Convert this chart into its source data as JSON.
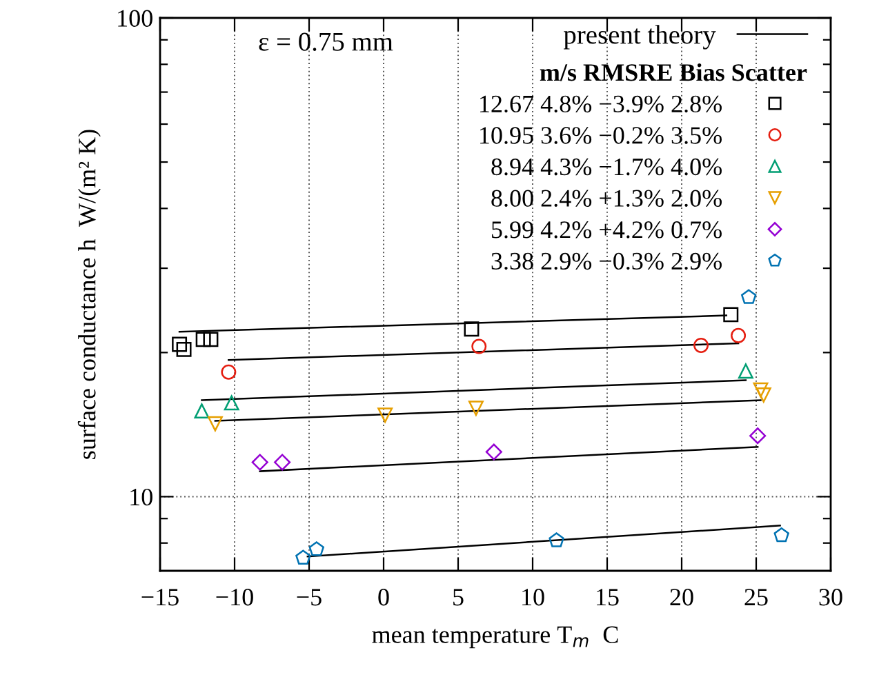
{
  "chart_data": {
    "type": "scatter",
    "xlabel": "mean temperature T$_{m}$  C",
    "ylabel": "surface conductance h  W/(m² K)",
    "legend_title": "m/s RMSRE Bias Scatter",
    "annotations": [
      "ε = 0.75 mm"
    ],
    "log": "y",
    "grid": true,
    "legend": "top",
    "xlim": [
      -15,
      30
    ],
    "xticks": [
      -15,
      -10,
      -5,
      0,
      5,
      10,
      15,
      20,
      25,
      30
    ],
    "ylim": [
      7,
      100
    ],
    "yticks": [
      {
        "value": 8,
        "label": null
      },
      {
        "value": 9,
        "label": null
      },
      10,
      {
        "value": 20,
        "label": null
      },
      {
        "value": 30,
        "label": null
      },
      {
        "value": 40,
        "label": null
      },
      {
        "value": 50,
        "label": null
      },
      {
        "value": 60,
        "label": null
      },
      {
        "value": 70,
        "label": null
      },
      {
        "value": 80,
        "label": null
      },
      {
        "value": 90,
        "label": null
      },
      100
    ],
    "series": [
      {
        "type": "line",
        "name": "present theory",
        "color": "#000000",
        "x": [
          -13.7,
          23.0
        ],
        "values": [
          22.1,
          23.9
        ]
      },
      {
        "type": "line",
        "color": "#000000",
        "x": [
          -10.4,
          23.8
        ],
        "values": [
          19.3,
          20.9
        ]
      },
      {
        "type": "line",
        "color": "#000000",
        "x": [
          -12.2,
          24.3
        ],
        "values": [
          15.9,
          17.5
        ]
      },
      {
        "type": "line",
        "color": "#000000",
        "x": [
          -11.3,
          25.3
        ],
        "values": [
          14.4,
          15.9
        ]
      },
      {
        "type": "line",
        "color": "#000000",
        "x": [
          -8.3,
          25.1
        ],
        "values": [
          11.3,
          12.7
        ]
      },
      {
        "type": "line",
        "color": "#000000",
        "x": [
          -5.1,
          26.6
        ],
        "values": [
          7.5,
          8.7
        ]
      },
      {
        "type": "scatter",
        "name": "12.67 4.8% −3.9% 2.8%",
        "color": "#000000",
        "marker": "square",
        "x": [
          -13.7,
          -13.4,
          -12.1,
          -11.6,
          5.9,
          23.3
        ],
        "values": [
          20.8,
          20.3,
          21.3,
          21.3,
          22.4,
          24.0
        ]
      },
      {
        "type": "scatter",
        "name": "10.95 3.6% −0.2% 3.5%",
        "color": "#e51e10",
        "marker": "circle",
        "x": [
          -10.4,
          6.4,
          21.3,
          23.8
        ],
        "values": [
          18.2,
          20.6,
          20.7,
          21.7
        ]
      },
      {
        "type": "scatter",
        "name": "8.94 4.3% −1.7% 4.0%",
        "color": "#009e73",
        "marker": "triangle",
        "x": [
          -12.2,
          -10.2,
          24.3
        ],
        "values": [
          15.1,
          15.7,
          18.3
        ]
      },
      {
        "type": "scatter",
        "name": "8.00 2.4% +1.3% 2.0%",
        "color": "#e69f00",
        "marker": "triangle_down",
        "x": [
          -11.3,
          0.1,
          6.2,
          25.3,
          25.5
        ],
        "values": [
          14.2,
          14.8,
          15.3,
          16.7,
          16.3
        ]
      },
      {
        "type": "scatter",
        "name": "5.99 4.2% +4.2% 0.7%",
        "color": "#9400d3",
        "marker": "diamond",
        "x": [
          -8.3,
          -6.8,
          7.4,
          25.1
        ],
        "values": [
          11.8,
          11.8,
          12.4,
          13.4
        ]
      },
      {
        "type": "scatter",
        "name": "3.38 2.9% −0.3% 2.9%",
        "color": "#0072b2",
        "x": [
          -5.4,
          -4.5,
          11.6,
          26.7,
          24.5
        ],
        "values": [
          7.45,
          7.76,
          8.1,
          8.3,
          26.1
        ]
      }
    ]
  }
}
